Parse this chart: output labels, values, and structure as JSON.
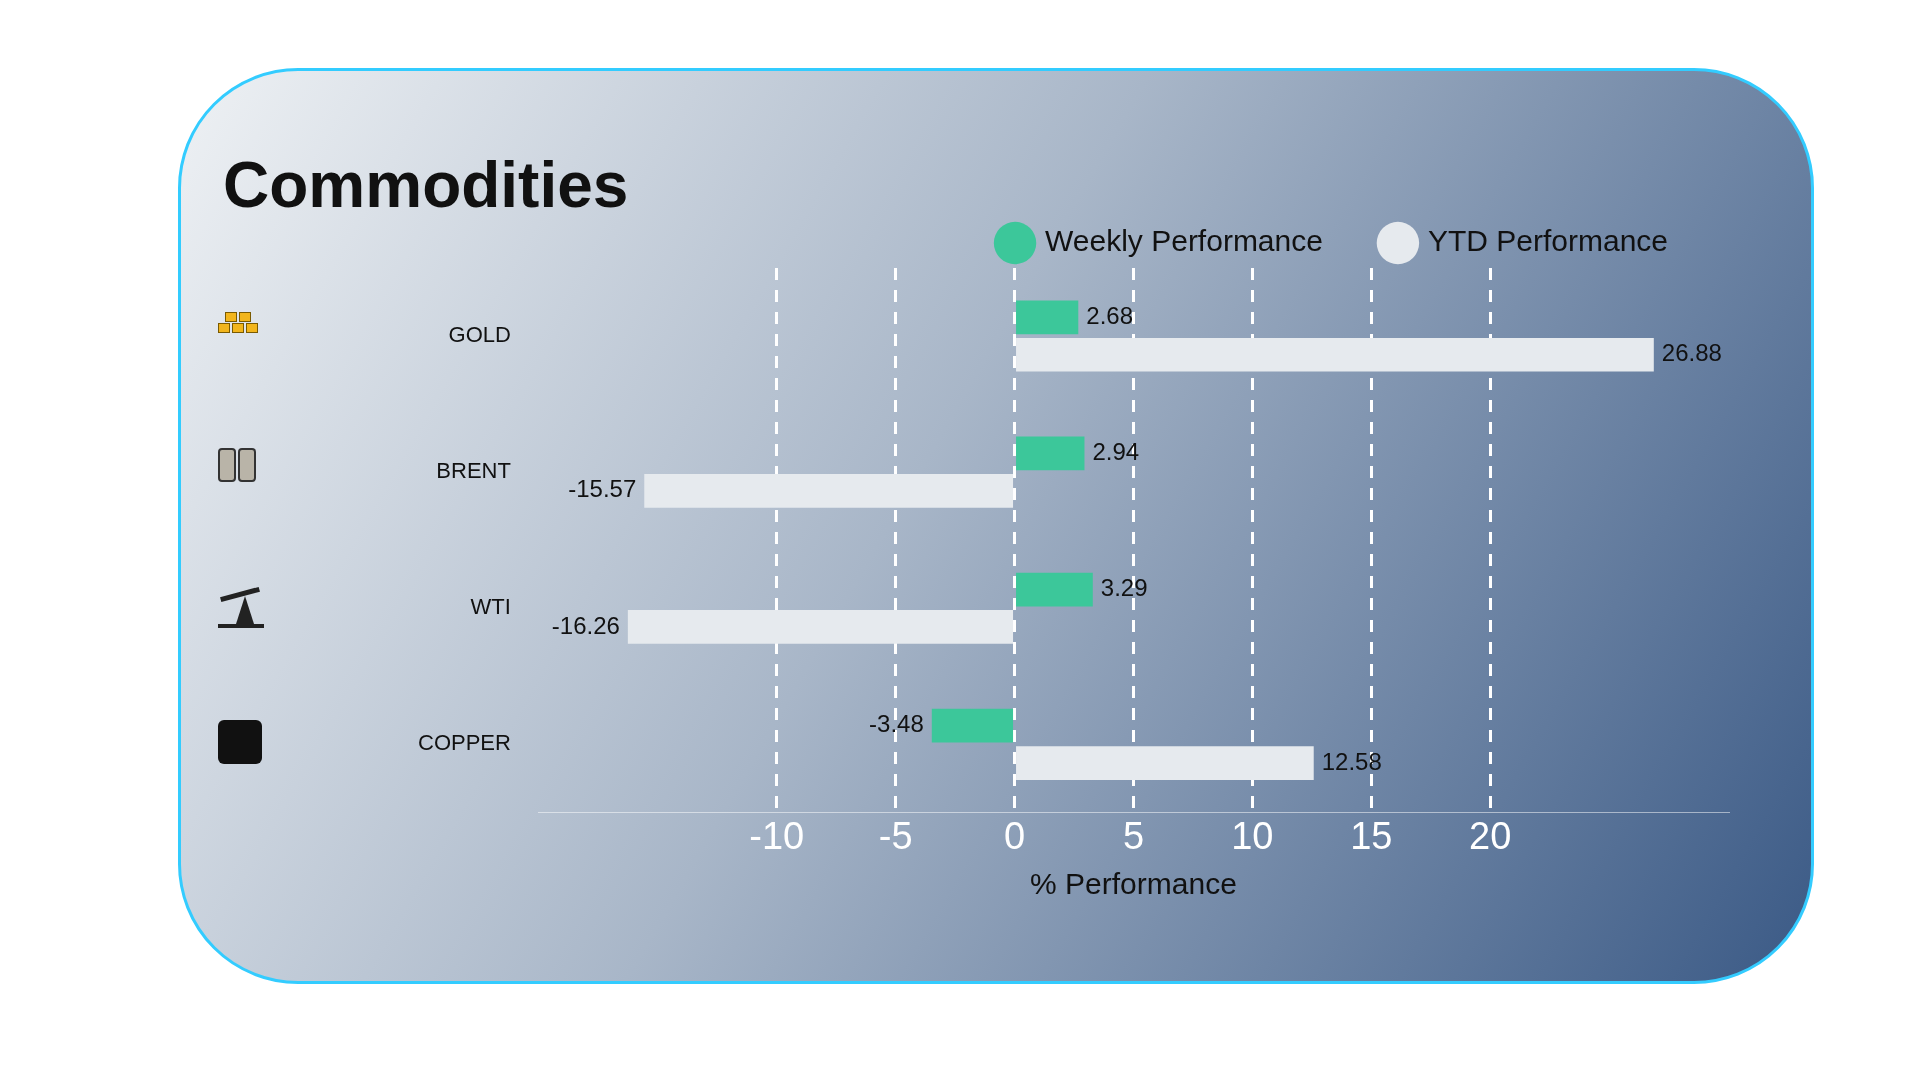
{
  "chart_data": {
    "type": "bar",
    "orientation": "horizontal",
    "title": "Commodities",
    "xlabel": "% Performance",
    "categories": [
      "GOLD",
      "BRENT",
      "WTI",
      "COPPER"
    ],
    "series": [
      {
        "name": "Weekly Performance",
        "color": "#3cc79a",
        "values": [
          2.68,
          2.94,
          3.29,
          -3.48
        ]
      },
      {
        "name": "YTD Performance",
        "color": "#e6eaee",
        "values": [
          26.88,
          -15.57,
          -16.26,
          12.58
        ]
      }
    ],
    "xlim": [
      -20,
      30
    ],
    "xticks": [
      -10,
      -5,
      0,
      5,
      10,
      15,
      20
    ],
    "grid": "x",
    "legend": "top right",
    "data_labels": true
  }
}
